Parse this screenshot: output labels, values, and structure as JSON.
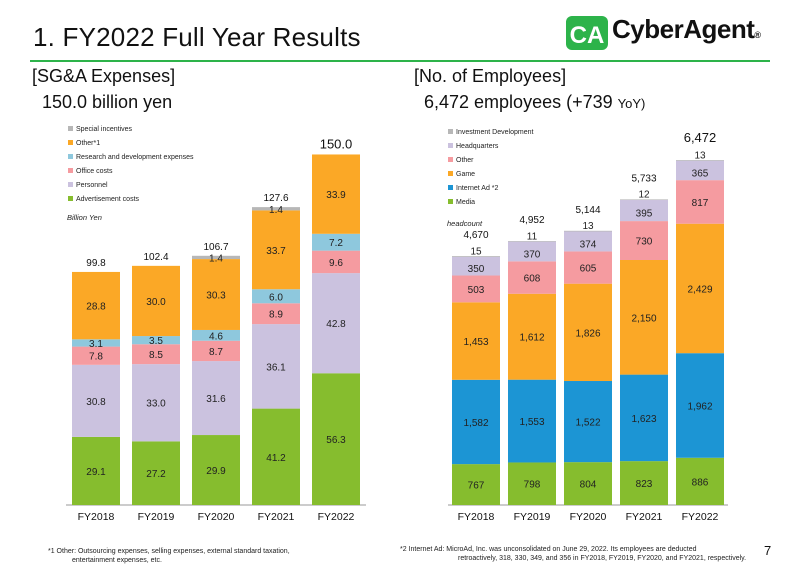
{
  "title": "1. FY2022 Full Year Results",
  "logo_text": "CyberAgent",
  "logo_mark": "CA",
  "logo_reg": "®",
  "page_number": "7",
  "colors": {
    "accent_green": "#2db34a",
    "advertisement": "#86bd2e",
    "personnel": "#cbc2df",
    "office": "#f59ba0",
    "research": "#8ec8dd",
    "other": "#fba826",
    "special": "#b7b7b7",
    "media": "#86bd2e",
    "internet_ad": "#1c95d4",
    "game": "#fba826",
    "other_emp": "#f59ba0",
    "headquarters": "#cbc2df",
    "investment": "#b7b7b7"
  },
  "left": {
    "heading": "[SG&A Expenses]",
    "subheading": "150.0 billion yen",
    "unit_label": "Billion Yen",
    "footnote_line1": "*1 Other: Outsourcing expenses, selling expenses, external standard taxation,",
    "footnote_line2": "entertainment expenses, etc."
  },
  "right": {
    "heading": "[No. of Employees]",
    "subheading": "6,472 employees (+739",
    "subheading_yoy": "YoY)",
    "unit_label": "headcount",
    "footnote_line1": "*2 Internet Ad: MicroAd, Inc. was unconsolidated on June 29, 2022. Its employees are deducted",
    "footnote_line2": "retroactively, 318, 330, 349, and 356 in FY2018, FY2019, FY2020, and FY2021, respectively."
  },
  "chart_data": [
    {
      "type": "bar",
      "stacked": true,
      "categories": [
        "FY2018",
        "FY2019",
        "FY2020",
        "FY2021",
        "FY2022"
      ],
      "unit": "Billion Yen",
      "series": [
        {
          "name": "Advertisement costs",
          "values": [
            29.1,
            27.2,
            29.9,
            41.2,
            56.3
          ],
          "color": "#86bd2e"
        },
        {
          "name": "Personnel",
          "values": [
            30.8,
            33.0,
            31.6,
            36.1,
            42.8
          ],
          "color": "#cbc2df"
        },
        {
          "name": "Office costs",
          "values": [
            7.8,
            8.5,
            8.7,
            8.9,
            9.6
          ],
          "color": "#f59ba0"
        },
        {
          "name": "Research and development expenses",
          "values": [
            3.1,
            3.5,
            4.6,
            6.0,
            7.2
          ],
          "color": "#8ec8dd"
        },
        {
          "name": "Other*1",
          "values": [
            28.8,
            30.0,
            30.3,
            33.7,
            33.9
          ],
          "color": "#fba826"
        },
        {
          "name": "Special incentives",
          "values": [
            0,
            0,
            1.4,
            1.4,
            0
          ],
          "color": "#b7b7b7"
        }
      ],
      "labels": [
        [
          "29.1",
          "27.2",
          "29.9",
          "41.2",
          "56.3"
        ],
        [
          "30.8",
          "33.0",
          "31.6",
          "36.1",
          "42.8"
        ],
        [
          "7.8",
          "8.5",
          "8.7",
          "8.9",
          "9.6"
        ],
        [
          "3.1",
          "3.5",
          "4.6",
          "6.0",
          "7.2"
        ],
        [
          "28.8",
          "30.0",
          "30.3",
          "33.7",
          "33.9"
        ],
        [
          "",
          "",
          "1.4",
          "1.4",
          ""
        ]
      ],
      "totals": [
        "99.8",
        "102.4",
        "106.7",
        "127.6",
        "150.0"
      ],
      "legend_order": [
        "Special incentives",
        "Other*1",
        "Research and development expenses",
        "Office costs",
        "Personnel",
        "Advertisement costs"
      ],
      "legend_position": "top-left",
      "grid": false
    },
    {
      "type": "bar",
      "stacked": true,
      "categories": [
        "FY2018",
        "FY2019",
        "FY2020",
        "FY2021",
        "FY2022"
      ],
      "unit": "headcount",
      "series": [
        {
          "name": "Media",
          "values": [
            767,
            798,
            804,
            823,
            886
          ],
          "color": "#86bd2e"
        },
        {
          "name": "Internet Ad *2",
          "values": [
            1582,
            1553,
            1522,
            1623,
            1962
          ],
          "color": "#1c95d4"
        },
        {
          "name": "Game",
          "values": [
            1453,
            1612,
            1826,
            2150,
            2429
          ],
          "color": "#fba826"
        },
        {
          "name": "Other",
          "values": [
            503,
            608,
            605,
            730,
            817
          ],
          "color": "#f59ba0"
        },
        {
          "name": "Headquarters",
          "values": [
            350,
            370,
            374,
            395,
            365
          ],
          "color": "#cbc2df"
        },
        {
          "name": "Investment Development",
          "values": [
            15,
            11,
            13,
            12,
            13
          ],
          "color": "#b7b7b7"
        }
      ],
      "labels": [
        [
          "767",
          "798",
          "804",
          "823",
          "886"
        ],
        [
          "1,582",
          "1,553",
          "1,522",
          "1,623",
          "1,962"
        ],
        [
          "1,453",
          "1,612",
          "1,826",
          "2,150",
          "2,429"
        ],
        [
          "503",
          "608",
          "605",
          "730",
          "817"
        ],
        [
          "350",
          "370",
          "374",
          "395",
          "365"
        ],
        [
          "15",
          "11",
          "13",
          "12",
          "13"
        ]
      ],
      "totals": [
        "4,670",
        "4,952",
        "5,144",
        "5,733",
        "6,472"
      ],
      "legend_order": [
        "Investment Development",
        "Headquarters",
        "Other",
        "Game",
        "Internet Ad *2",
        "Media"
      ],
      "legend_position": "top-left",
      "grid": false
    }
  ]
}
